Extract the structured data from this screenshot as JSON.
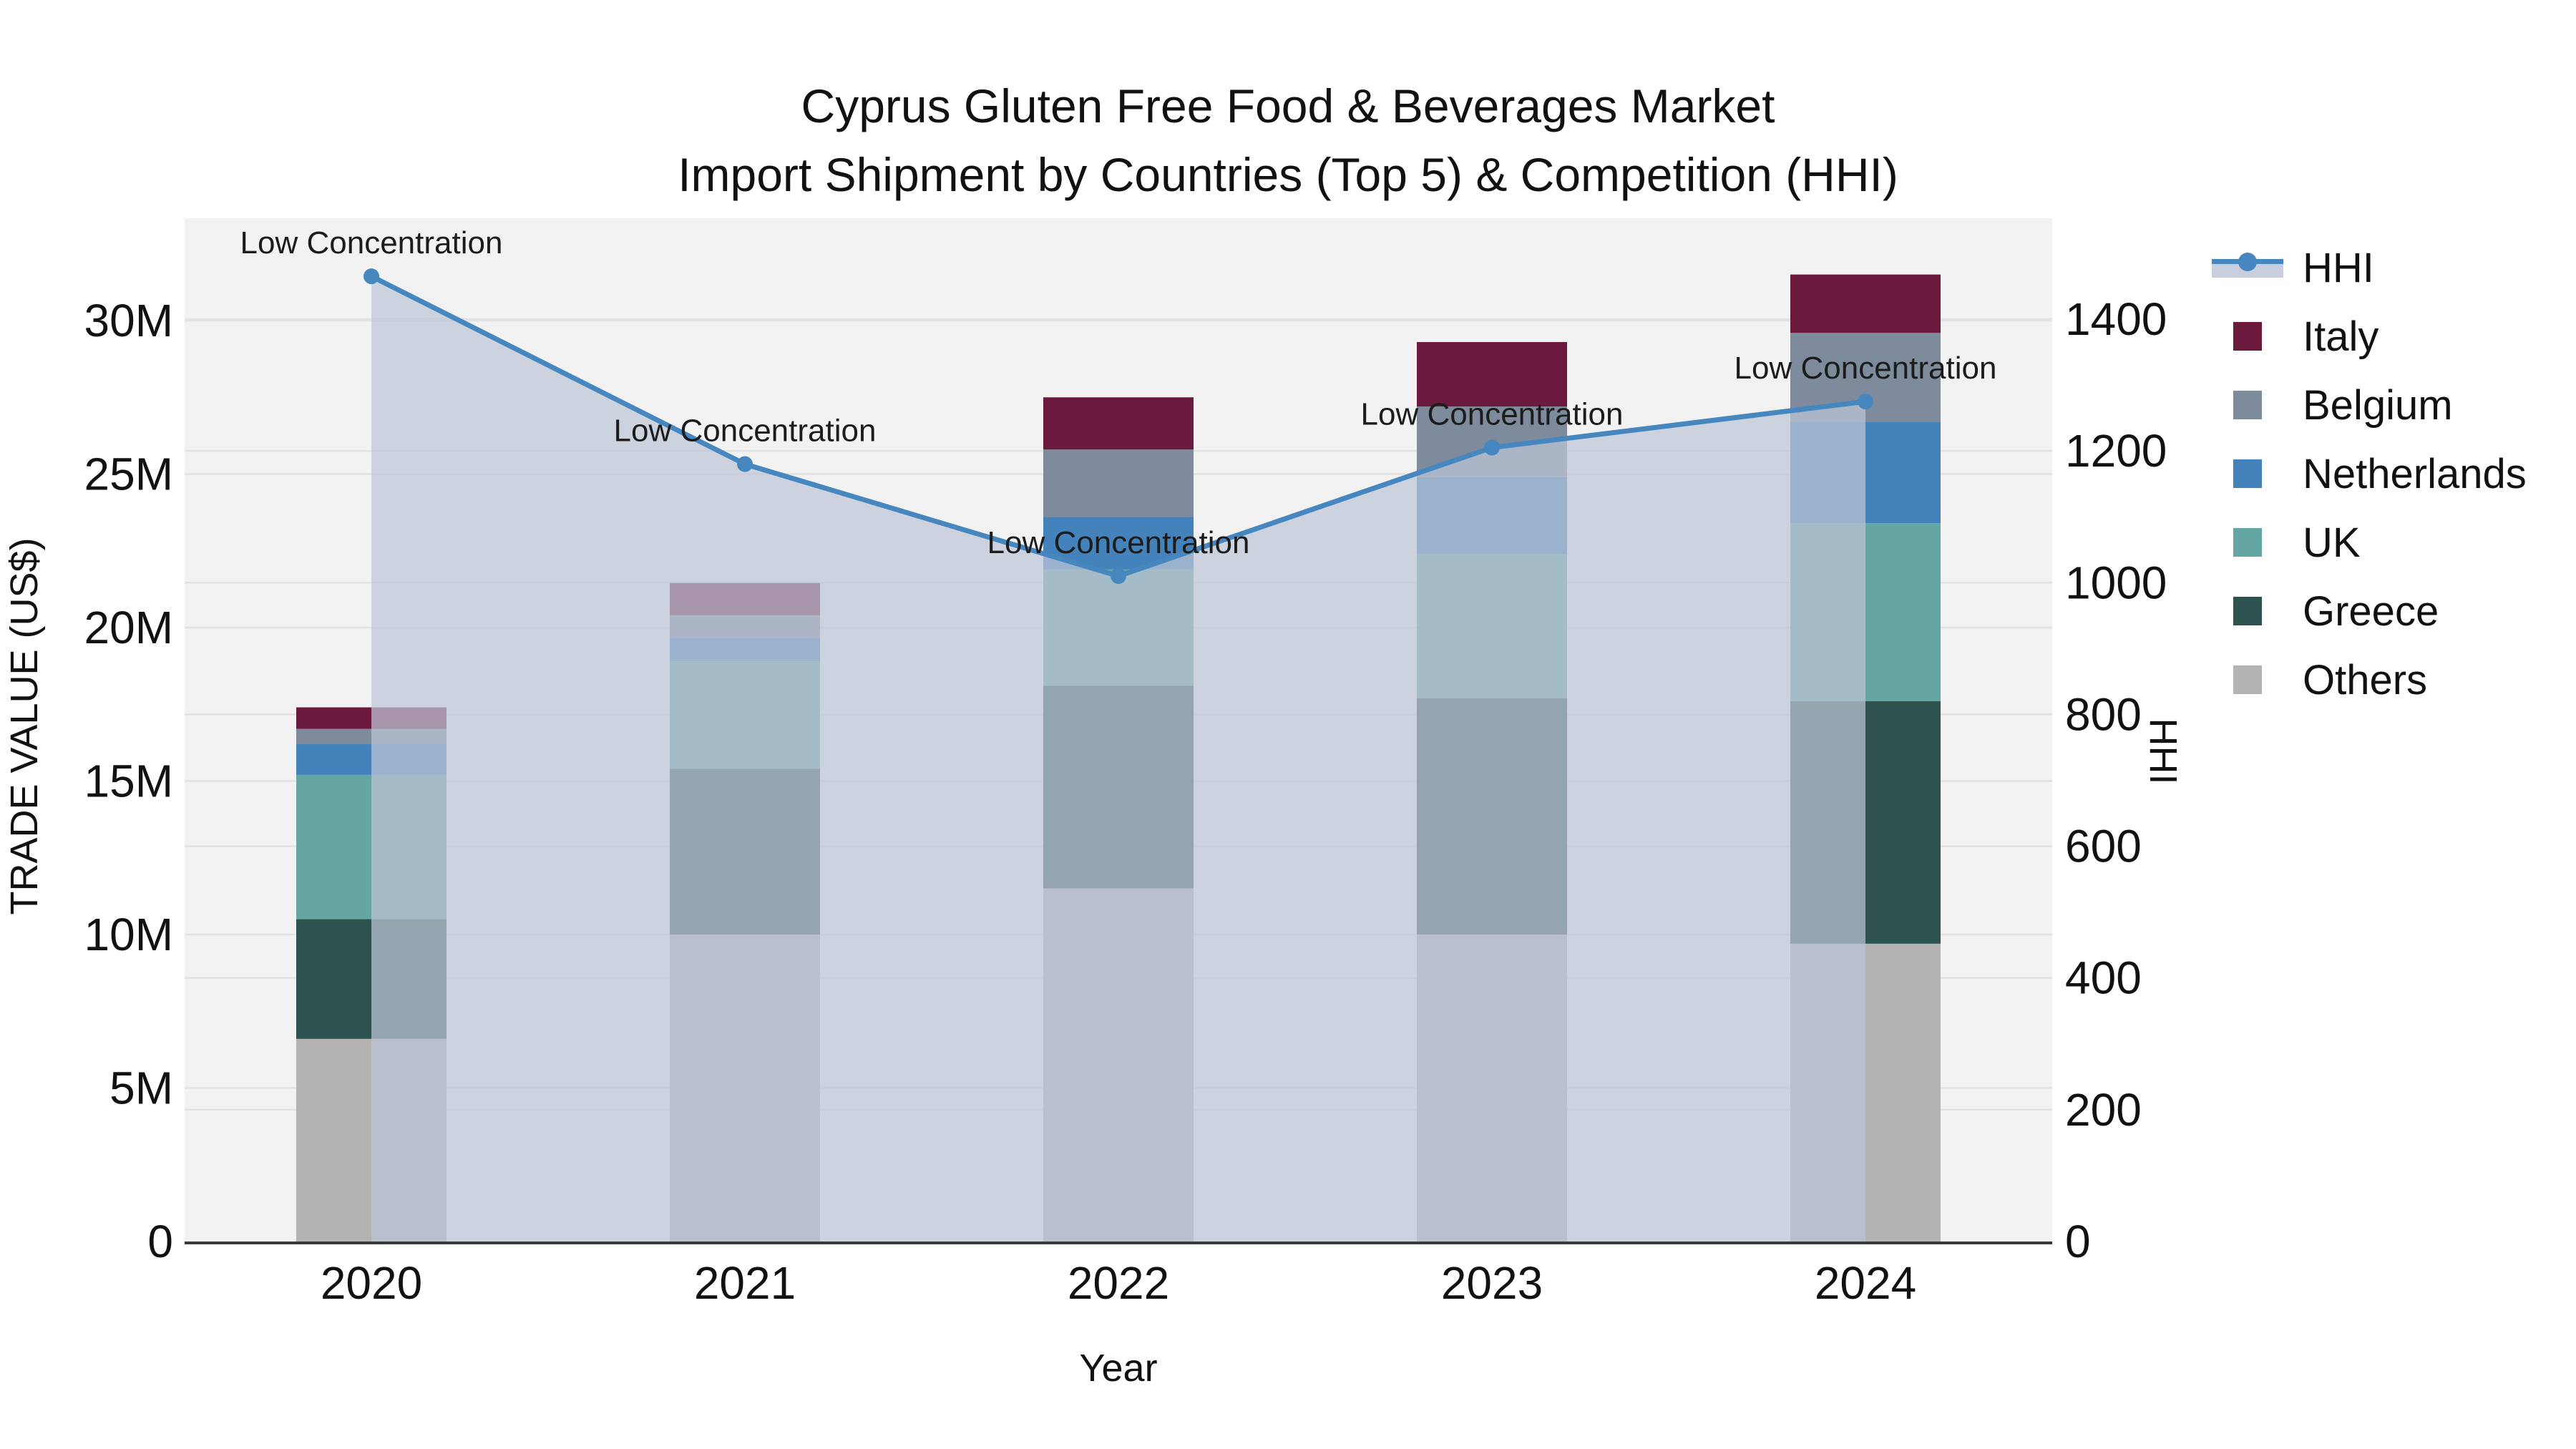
{
  "title": {
    "line1": "Cyprus Gluten Free Food & Beverages Market",
    "line2": "Import Shipment by Countries (Top 5) & Competition (HHI)"
  },
  "colors": {
    "plot_bg": "#f2f2f2",
    "gridline": "#e2e2e2",
    "axis_line": "#3a3a3a",
    "text": "#111111",
    "annotation_text": "#1c1c1c",
    "hhi_line": "#4687bf",
    "hhi_area": "#bdc5d5",
    "hhi_legend_band": "#c8cedd"
  },
  "axes": {
    "left": {
      "title": "TRADE VALUE (US$)",
      "ticks": [
        "0",
        "5M",
        "10M",
        "15M",
        "20M",
        "25M",
        "30M"
      ],
      "tick_values": [
        0,
        5,
        10,
        15,
        20,
        25,
        30
      ]
    },
    "right": {
      "title": "HHI",
      "ticks": [
        "0",
        "200",
        "400",
        "600",
        "800",
        "1000",
        "1200",
        "1400"
      ],
      "tick_values": [
        0,
        200,
        400,
        600,
        800,
        1000,
        1200,
        1400
      ]
    },
    "x": {
      "title": "Year",
      "ticks": [
        "2020",
        "2021",
        "2022",
        "2023",
        "2024"
      ]
    }
  },
  "legend": {
    "items": [
      {
        "label": "HHI",
        "type": "line",
        "color": "#4687bf"
      },
      {
        "label": "Italy",
        "type": "swatch",
        "color": "#6b1a3d"
      },
      {
        "label": "Belgium",
        "type": "swatch",
        "color": "#7d8b9d"
      },
      {
        "label": "Netherlands",
        "type": "swatch",
        "color": "#4482bc"
      },
      {
        "label": "UK",
        "type": "swatch",
        "color": "#63a6a3"
      },
      {
        "label": "Greece",
        "type": "swatch",
        "color": "#2e524f"
      },
      {
        "label": "Others",
        "type": "swatch",
        "color": "#b5b3b1"
      }
    ]
  },
  "chart_data": {
    "type": "bar+line",
    "title": "Cyprus Gluten Free Food & Beverages Market — Import Shipment by Countries (Top 5) & Competition (HHI)",
    "xlabel": "Year",
    "ylabel": "TRADE VALUE (US$)",
    "y2label": "HHI",
    "categories": [
      "2020",
      "2021",
      "2022",
      "2023",
      "2024"
    ],
    "units": "M = millions US$",
    "stack_order_bottom_to_top": [
      "Others",
      "Greece",
      "UK",
      "Netherlands",
      "Belgium",
      "Italy"
    ],
    "series": [
      {
        "name": "Others",
        "color": "#b5b3b1",
        "values": [
          6.6,
          10.0,
          11.5,
          10.0,
          9.7
        ]
      },
      {
        "name": "Greece",
        "color": "#2e524f",
        "values": [
          3.9,
          5.4,
          6.6,
          7.7,
          7.9
        ]
      },
      {
        "name": "UK",
        "color": "#63a6a3",
        "values": [
          4.7,
          3.5,
          3.8,
          4.7,
          5.8
        ]
      },
      {
        "name": "Netherlands",
        "color": "#4482bc",
        "values": [
          1.0,
          0.75,
          1.7,
          2.5,
          3.3
        ]
      },
      {
        "name": "Belgium",
        "color": "#7d8b9d",
        "values": [
          0.5,
          0.75,
          2.2,
          2.3,
          2.9
        ]
      },
      {
        "name": "Italy",
        "color": "#6b1a3d",
        "values": [
          0.7,
          1.05,
          1.7,
          2.1,
          1.9
        ]
      }
    ],
    "bar_totals": [
      17.4,
      21.45,
      27.5,
      29.3,
      31.5
    ],
    "line_series": {
      "name": "HHI",
      "axis": "right",
      "color": "#4687bf",
      "area_fill": "#bdc5d5",
      "values": [
        1465,
        1180,
        1010,
        1205,
        1275
      ],
      "point_annotations": [
        "Low Concentration",
        "Low Concentration",
        "Low Concentration",
        "Low Concentration",
        "Low Concentration"
      ]
    },
    "ylim": [
      0,
      33.5
    ],
    "y2lim": [
      0,
      1560
    ],
    "grid": true,
    "legend_position": "right"
  }
}
